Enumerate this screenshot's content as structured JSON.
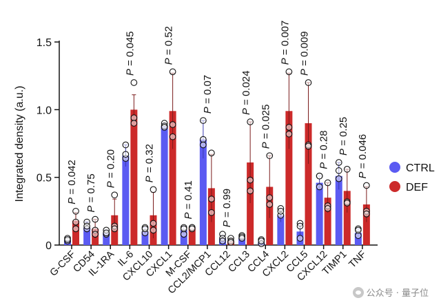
{
  "chart_data": {
    "type": "bar",
    "ylabel": "Integrated density (a.u.)",
    "ylim": [
      0,
      1.5
    ],
    "yticks": [
      0,
      0.5,
      1.0,
      1.5
    ],
    "ytick_labels": [
      "0",
      "0.5",
      "1.0",
      "1.5"
    ],
    "p_prefix": "P = ",
    "categories": [
      "G-CSF",
      "CD54",
      "IL-1RA",
      "IL-6",
      "CXCL10",
      "CXCL1",
      "M-CSF",
      "CCL2/MCP1",
      "CCL12",
      "CCL3",
      "CCL4",
      "CXCL2",
      "CCL5",
      "CXCL12",
      "TIMP1",
      "TNF"
    ],
    "p_values": [
      "0.042",
      "0.75",
      "0.20",
      "0.045",
      "0.32",
      "0.52",
      "0.41",
      "0.07",
      "0.99",
      "0.024",
      "0.025",
      "0.007",
      "0.009",
      "0.28",
      "0.25",
      "0.046"
    ],
    "series": [
      {
        "name": "CTRL",
        "color": "#5b5bf2",
        "values": [
          0.04,
          0.13,
          0.09,
          0.66,
          0.1,
          0.88,
          0.11,
          0.78,
          0.05,
          0.05,
          0.02,
          0.22,
          0.1,
          0.46,
          0.51,
          0.09
        ],
        "err": [
          0.02,
          0.04,
          0.02,
          0.08,
          0.03,
          0.02,
          0.03,
          0.14,
          0.02,
          0.01,
          0.02,
          0.05,
          0.06,
          0.05,
          0.1,
          0.03
        ],
        "points": [
          [
            0.03,
            0.05,
            0.04
          ],
          [
            0.12,
            0.17,
            0.14
          ],
          [
            0.08,
            0.11,
            0.09
          ],
          [
            0.74,
            0.64,
            0.67
          ],
          [
            0.13,
            0.09,
            0.12
          ],
          [
            0.9,
            0.88,
            0.87
          ],
          [
            0.13,
            0.08,
            0.12
          ],
          [
            0.92,
            0.78,
            0.74
          ],
          [
            0.08,
            0.05,
            0.03
          ],
          [
            0.07,
            0.06,
            0.05
          ],
          [
            0.04,
            0.01,
            0.03
          ],
          [
            0.27,
            0.22,
            0.25
          ],
          [
            0.16,
            0.05,
            0.14
          ],
          [
            0.51,
            0.43,
            0.51
          ],
          [
            0.61,
            0.49,
            0.55
          ],
          [
            0.12,
            0.07,
            0.11
          ]
        ]
      },
      {
        "name": "DEF",
        "color": "#cc2a2a",
        "values": [
          0.18,
          0.12,
          0.22,
          1.0,
          0.22,
          0.99,
          0.13,
          0.42,
          0.03,
          0.61,
          0.43,
          0.99,
          0.9,
          0.35,
          0.4,
          0.3
        ],
        "err": [
          0.06,
          0.07,
          0.12,
          0.11,
          0.17,
          0.28,
          0.01,
          0.25,
          0.02,
          0.3,
          0.23,
          0.28,
          0.3,
          0.11,
          0.16,
          0.13
        ],
        "points": [
          [
            0.25,
            0.17,
            0.12
          ],
          [
            0.19,
            0.11,
            0.08
          ],
          [
            0.37,
            0.14,
            0.12
          ],
          [
            1.2,
            0.94,
            0.9
          ],
          [
            0.41,
            0.16,
            0.11
          ],
          [
            1.28,
            0.89,
            0.8
          ],
          [
            0.13,
            0.13,
            0.12
          ],
          [
            0.68,
            0.34,
            0.24
          ],
          [
            0.05,
            0.03,
            0.02
          ],
          [
            0.91,
            0.48,
            0.4
          ],
          [
            0.66,
            0.35,
            0.3
          ],
          [
            1.28,
            0.87,
            0.82
          ],
          [
            1.2,
            0.74,
            0.73
          ],
          [
            0.46,
            0.29,
            0.27
          ],
          [
            0.56,
            0.32,
            0.31
          ],
          [
            0.44,
            0.25,
            0.23
          ]
        ]
      }
    ]
  },
  "legend": {
    "position": "right",
    "items": [
      {
        "label": "CTRL",
        "color": "#5b5bf2"
      },
      {
        "label": "DEF",
        "color": "#cc2a2a"
      }
    ]
  },
  "watermark": {
    "text": "公众号 · 量子位",
    "icon": "wechat-icon"
  }
}
